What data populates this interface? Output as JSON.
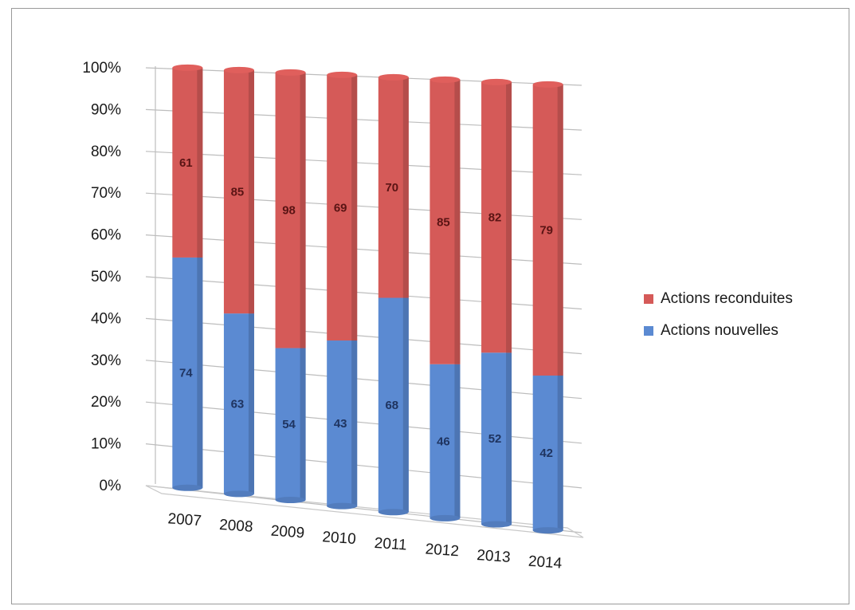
{
  "chart_data": {
    "type": "bar",
    "stacked": "percent",
    "categories": [
      "2007",
      "2008",
      "2009",
      "2010",
      "2011",
      "2012",
      "2013",
      "2014"
    ],
    "series": [
      {
        "name": "Actions nouvelles",
        "values": [
          74,
          63,
          54,
          43,
          68,
          46,
          52,
          42
        ],
        "color": "#5b8ad2"
      },
      {
        "name": "Actions reconduites",
        "values": [
          61,
          85,
          98,
          69,
          70,
          85,
          82,
          79
        ],
        "color": "#d55a58"
      }
    ],
    "y_ticks": [
      "0%",
      "10%",
      "20%",
      "30%",
      "40%",
      "50%",
      "60%",
      "70%",
      "80%",
      "90%",
      "100%"
    ],
    "ylim": [
      0,
      100
    ],
    "grid": true,
    "legend_position": "right",
    "title": "",
    "xlabel": "",
    "ylabel": ""
  },
  "legend": {
    "items": [
      {
        "label": "Actions reconduites",
        "color": "#d55a58"
      },
      {
        "label": "Actions nouvelles",
        "color": "#5b8ad2"
      }
    ]
  }
}
